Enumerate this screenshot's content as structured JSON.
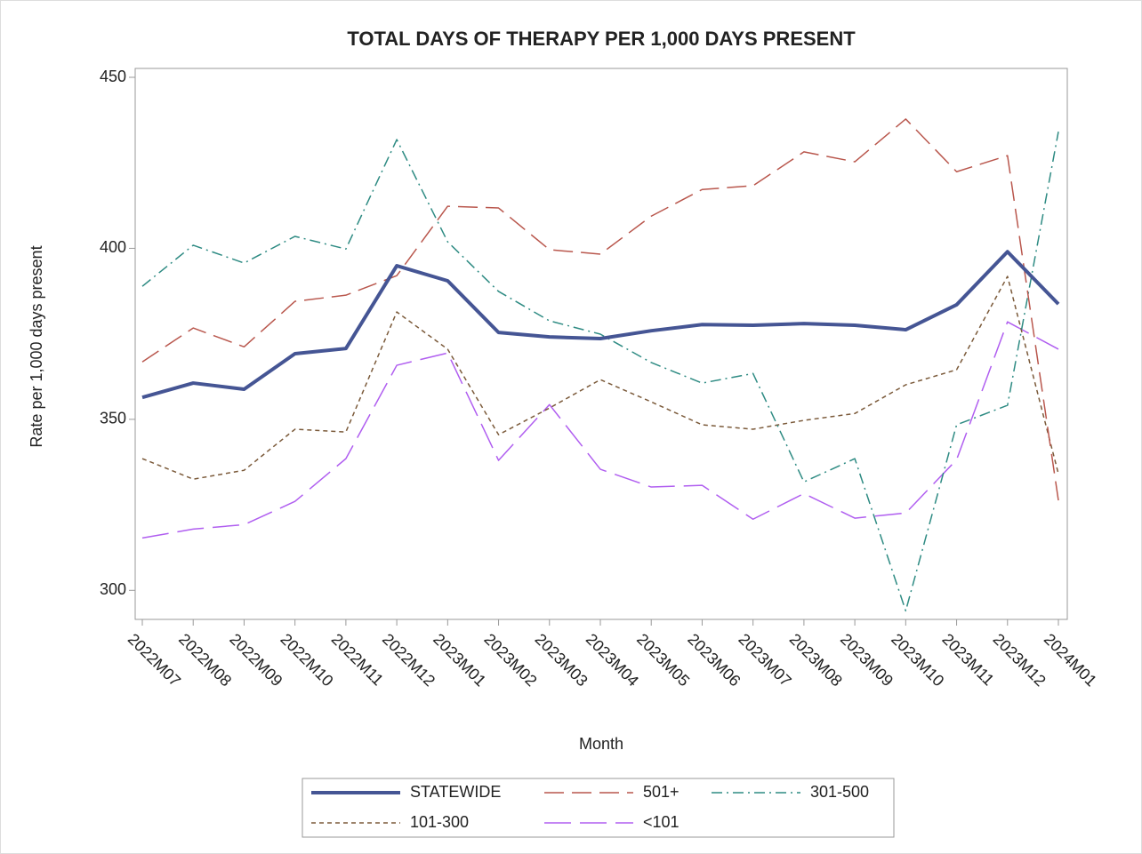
{
  "chart_data": {
    "type": "line",
    "title": "TOTAL DAYS OF THERAPY PER 1,000 DAYS PRESENT",
    "x_label": "Month",
    "y_label": "Rate per 1,000 days present",
    "categories": [
      "2022M07",
      "2022M08",
      "2022M09",
      "2022M10",
      "2022M11",
      "2022M12",
      "2023M01",
      "2023M02",
      "2023M03",
      "2023M04",
      "2023M05",
      "2023M06",
      "2023M07",
      "2023M08",
      "2023M09",
      "2023M10",
      "2023M11",
      "2023M12",
      "2024M01"
    ],
    "ylim": [
      291.5,
      452.6
    ],
    "yticks": [
      300,
      350,
      400,
      450
    ],
    "grid": false,
    "legend": "bottom",
    "series": [
      {
        "name": "STATEWIDE",
        "color": "#455594",
        "width": 4,
        "dash": "solid",
        "values": [
          356.4,
          360.6,
          358.8,
          369.2,
          370.7,
          394.9,
          390.5,
          375.4,
          374.1,
          373.6,
          375.9,
          377.7,
          377.5,
          378.0,
          377.5,
          376.2,
          383.5,
          399.0,
          383.7
        ]
      },
      {
        "name": "501+",
        "color": "#b9574d",
        "width": 1.5,
        "dash": "long",
        "values": [
          366.8,
          376.7,
          371.2,
          384.5,
          386.3,
          392.0,
          412.3,
          411.8,
          399.6,
          398.3,
          409.4,
          417.2,
          418.3,
          428.2,
          425.3,
          437.8,
          422.4,
          427.1,
          326.3
        ]
      },
      {
        "name": "301-500",
        "color": "#2e8b83",
        "width": 1.5,
        "dash": "dashdot",
        "values": [
          388.9,
          400.9,
          395.7,
          403.5,
          399.8,
          431.8,
          401.9,
          387.4,
          378.8,
          374.9,
          366.6,
          360.6,
          363.4,
          331.7,
          338.5,
          294.0,
          348.4,
          354.1,
          434.1
        ]
      },
      {
        "name": "101-300",
        "color": "#7b5a3a",
        "width": 1.5,
        "dash": "short",
        "values": [
          338.5,
          332.5,
          335.1,
          347.1,
          346.3,
          381.4,
          370.5,
          345.5,
          353.3,
          361.6,
          355.1,
          348.4,
          347.1,
          349.7,
          351.7,
          360.1,
          364.5,
          391.8,
          334.1
        ]
      },
      {
        "name": "<101",
        "color": "#b05ef0",
        "width": 1.5,
        "dash": "longer",
        "values": [
          315.3,
          317.9,
          319.2,
          326.0,
          338.5,
          365.8,
          369.4,
          338.0,
          354.3,
          335.4,
          330.2,
          330.7,
          320.8,
          328.3,
          321.1,
          322.6,
          338.2,
          378.5,
          370.5
        ]
      }
    ]
  }
}
